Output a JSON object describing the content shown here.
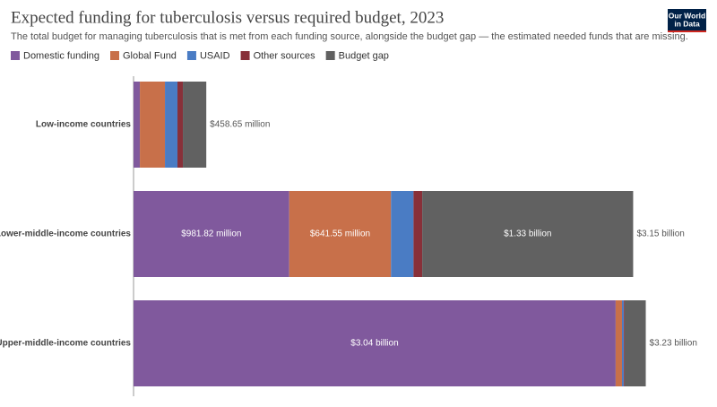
{
  "chart_data": {
    "type": "stacked-bar-horizontal",
    "title": "Expected funding for tuberculosis versus required budget, 2023",
    "subtitle": "The total budget for managing tuberculosis that is met from each funding source, alongside the budget gap — the estimated needed funds that are missing.",
    "categories": [
      "Low-income countries",
      "Lower-middle-income countries",
      "Upper-middle-income countries"
    ],
    "xlim": [
      0,
      3600
    ],
    "series": [
      {
        "name": "Domestic funding",
        "color": "#80599d",
        "values": [
          40,
          981.82,
          3040
        ],
        "value_labels": [
          null,
          "$981.82 million",
          "$3.04 billion"
        ]
      },
      {
        "name": "Global Fund",
        "color": "#c8704a",
        "values": [
          158,
          641.55,
          40
        ],
        "value_labels": [
          null,
          "$641.55 million",
          null
        ]
      },
      {
        "name": "USAID",
        "color": "#4a7cc4",
        "values": [
          79,
          142,
          11
        ]
      },
      {
        "name": "Other sources",
        "color": "#883039",
        "values": [
          34,
          55,
          5
        ]
      },
      {
        "name": "Budget gap",
        "color": "#616161",
        "values": [
          147.65,
          1330,
          134
        ],
        "value_labels": [
          null,
          "$1.33 billion",
          null
        ]
      }
    ],
    "totals": {
      "values": [
        458.65,
        3150,
        3230
      ],
      "value_labels": [
        "$458.65 million",
        "$3.15 billion",
        "$3.23 billion"
      ]
    }
  },
  "logo": [
    "Our World",
    "in Data"
  ]
}
